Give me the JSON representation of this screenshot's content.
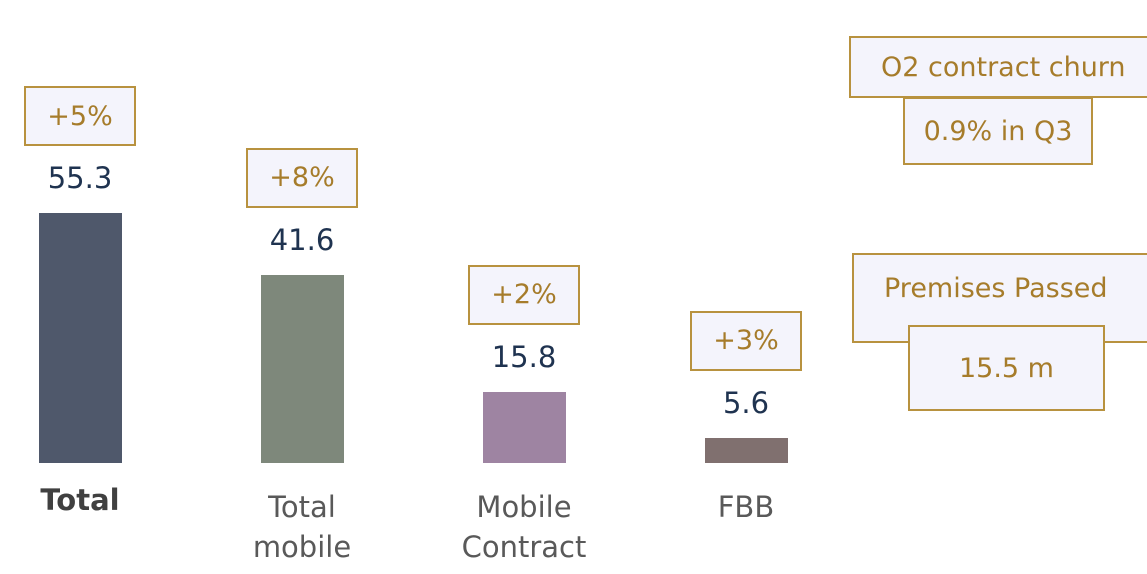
{
  "chart_data": {
    "type": "bar",
    "categories": [
      "Total",
      "Total mobile",
      "Mobile Contract",
      "FBB"
    ],
    "values": [
      55.3,
      41.6,
      15.8,
      5.6
    ],
    "growth": [
      "+5%",
      "+8%",
      "+2%",
      "+3%"
    ],
    "colors": [
      "#4f586b",
      "#7e887b",
      "#9e84a2",
      "#80706f"
    ],
    "annotations": [
      {
        "title": "O2 contract churn",
        "value": "0.9% in Q3"
      },
      {
        "title": "Premises Passed",
        "value": "15.5 m"
      }
    ]
  }
}
